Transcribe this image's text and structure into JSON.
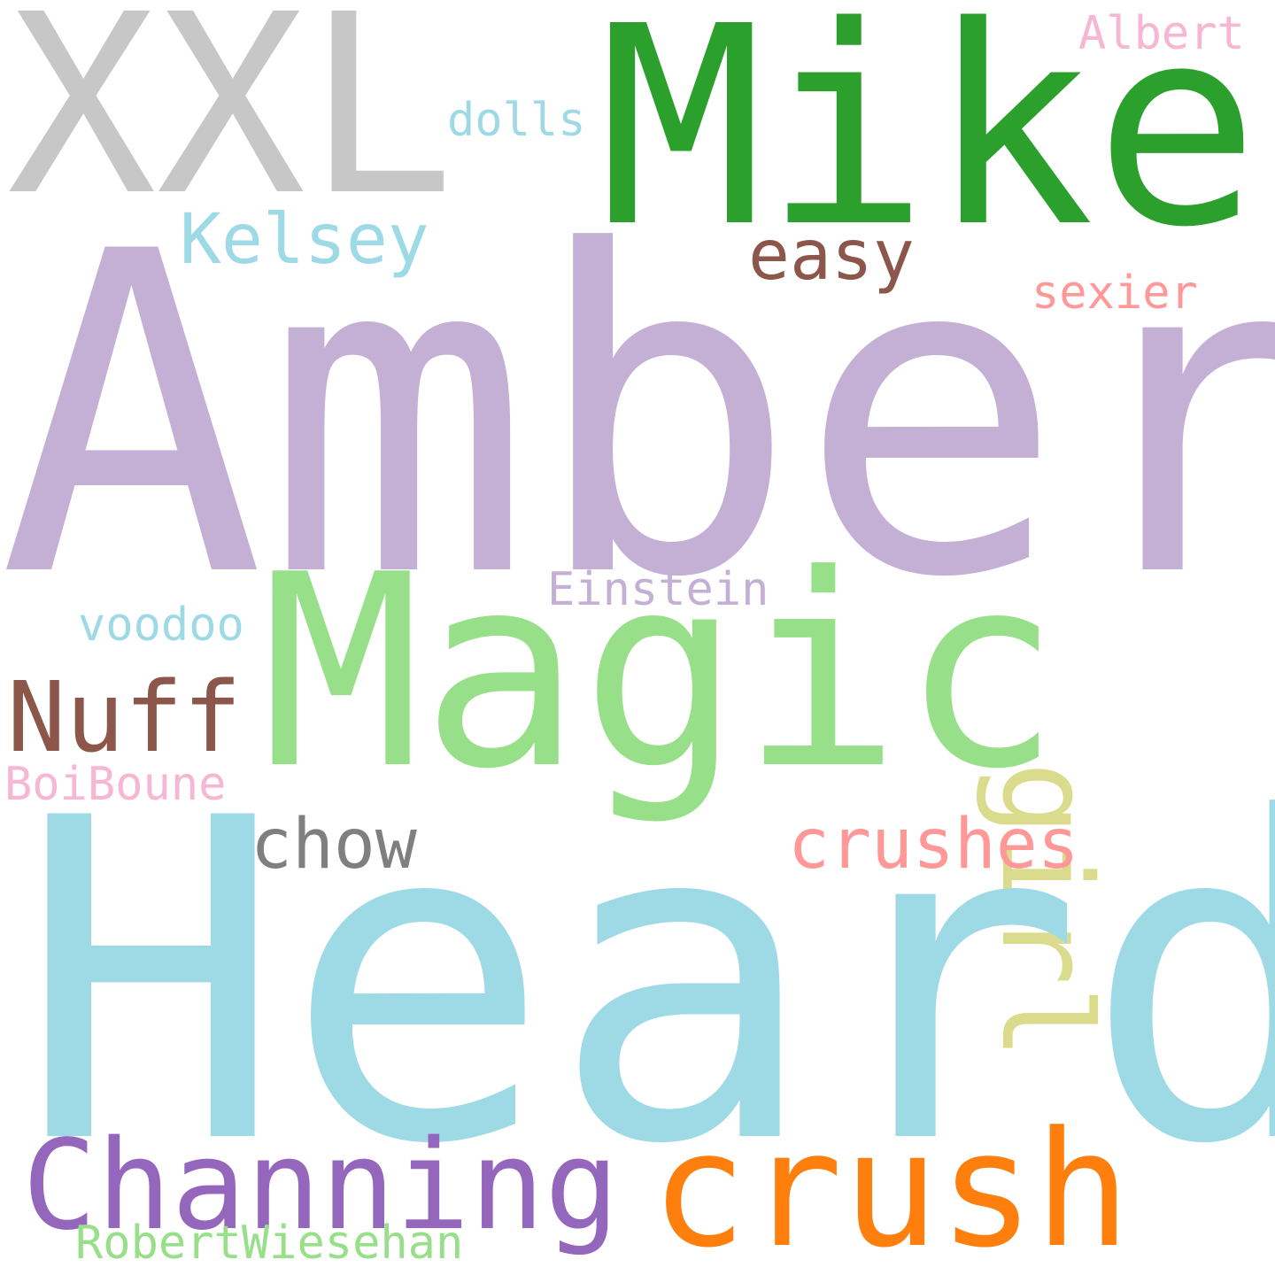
{
  "words": {
    "xxl": {
      "text": "XXL",
      "color": "#c7c7c7"
    },
    "mike": {
      "text": "Mike",
      "color": "#2ca02c"
    },
    "albert": {
      "text": "Albert",
      "color": "#f7b6d2"
    },
    "dolls": {
      "text": "dolls",
      "color": "#9edae5"
    },
    "kelsey": {
      "text": "Kelsey",
      "color": "#9edae5"
    },
    "easy": {
      "text": "easy",
      "color": "#8c564b"
    },
    "sexier": {
      "text": "sexier",
      "color": "#ff9896"
    },
    "amber": {
      "text": "Amber",
      "color": "#c5b0d5"
    },
    "girl": {
      "text": "girl",
      "color": "#dbdb8d"
    },
    "einstein": {
      "text": "Einstein",
      "color": "#c5b0d5"
    },
    "voodoo": {
      "text": "voodoo",
      "color": "#9edae5"
    },
    "magic": {
      "text": "Magic",
      "color": "#98df8a"
    },
    "nuff": {
      "text": "Nuff",
      "color": "#8c564b"
    },
    "boiboune": {
      "text": "BoiBoune",
      "color": "#f7b6d2"
    },
    "chow": {
      "text": "chow",
      "color": "#7f7f7f"
    },
    "crushes": {
      "text": "crushes",
      "color": "#ff9896"
    },
    "heard": {
      "text": "Heard",
      "color": "#9edae5"
    },
    "channing": {
      "text": "Channing",
      "color": "#9467bd"
    },
    "crush": {
      "text": "crush",
      "color": "#ff7f0e"
    },
    "robert": {
      "text": "RobertWiesehan",
      "color": "#98df8a"
    }
  }
}
